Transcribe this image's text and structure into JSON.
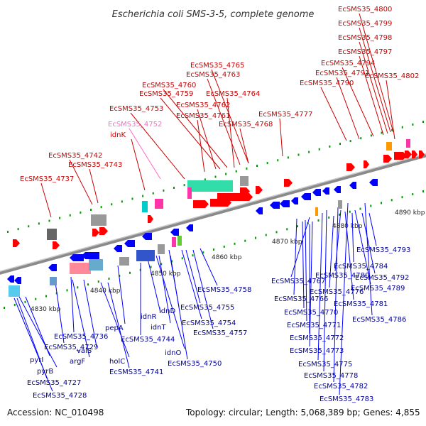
{
  "title": "Escherichia coli SMS-3-5, complete genome",
  "footer": {
    "accession": "Accession: NC_010498",
    "topology": "Topology: circular; Length: 5,068,389 bp; Genes: 4,855"
  },
  "colors": {
    "forward": "#ff0000",
    "reverse": "#0000ff",
    "grey": "#999999",
    "cyan": "#00cccc",
    "teal": "#33ddaa",
    "pink": "#ff33aa",
    "orange": "#ff9900",
    "green": "#009900",
    "label_forward": "#cc0000",
    "label_reverse": "#000099",
    "label_pink": "#ff66cc"
  },
  "kbp_ticks": [
    "4830 kbp",
    "4840 kbp",
    "4850 kbp",
    "4860 kbp",
    "4870 kbp",
    "4880 kbp",
    "4890 kbp"
  ],
  "top_labels": [
    {
      "text": "EcSMS35_4800",
      "tone": "red"
    },
    {
      "text": "EcSMS35_4799",
      "tone": "red"
    },
    {
      "text": "EcSMS35_4798",
      "tone": "red"
    },
    {
      "text": "EcSMS35_4797",
      "tone": "red"
    },
    {
      "text": "EcSMS35_4794",
      "tone": "red"
    },
    {
      "text": "EcSMS35_4791",
      "tone": "red"
    },
    {
      "text": "EcSMS35_4802",
      "tone": "red"
    },
    {
      "text": "EcSMS35_4790",
      "tone": "red"
    },
    {
      "text": "EcSMS35_4765",
      "tone": "red"
    },
    {
      "text": "EcSMS35_4763",
      "tone": "red"
    },
    {
      "text": "EcSMS35_4760",
      "tone": "red"
    },
    {
      "text": "EcSMS35_4759",
      "tone": "red"
    },
    {
      "text": "EcSMS35_4764",
      "tone": "red"
    },
    {
      "text": "EcSMS35_4762",
      "tone": "red"
    },
    {
      "text": "EcSMS35_4753",
      "tone": "red"
    },
    {
      "text": "EcSMS35_4761",
      "tone": "red"
    },
    {
      "text": "EcSMS35_4777",
      "tone": "red"
    },
    {
      "text": "EcSMS35_4768",
      "tone": "red"
    },
    {
      "text": "EcSMS35_4752",
      "tone": "pink"
    },
    {
      "text": "idnK",
      "tone": "red"
    },
    {
      "text": "EcSMS35_4742",
      "tone": "red"
    },
    {
      "text": "EcSMS35_4743",
      "tone": "red"
    },
    {
      "text": "EcSMS35_4737",
      "tone": "red"
    }
  ],
  "bottom_labels": [
    {
      "text": "EcSMS35_4793"
    },
    {
      "text": "EcSMS35_4784"
    },
    {
      "text": "EcSMS35_4792"
    },
    {
      "text": "EcSMS35_4767"
    },
    {
      "text": "EcSMS35_4780"
    },
    {
      "text": "EcSMS35_4789"
    },
    {
      "text": "EcSMS35_4758"
    },
    {
      "text": "EcSMS35_4766"
    },
    {
      "text": "EcSMS35_4776"
    },
    {
      "text": "EcSMS35_4781"
    },
    {
      "text": "EcSMS35_4755"
    },
    {
      "text": "idnD"
    },
    {
      "text": "EcSMS35_4770"
    },
    {
      "text": "EcSMS35_4786"
    },
    {
      "text": "idnR"
    },
    {
      "text": "EcSMS35_4754"
    },
    {
      "text": "idnT"
    },
    {
      "text": "EcSMS35_4771"
    },
    {
      "text": "pepA"
    },
    {
      "text": "EcSMS35_4757"
    },
    {
      "text": "EcSMS35_4736"
    },
    {
      "text": "EcSMS35_4744"
    },
    {
      "text": "EcSMS35_4772"
    },
    {
      "text": "EcSMS35_4729"
    },
    {
      "text": "idnO"
    },
    {
      "text": "valS"
    },
    {
      "text": "EcSMS35_4773"
    },
    {
      "text": "argF"
    },
    {
      "text": "pyrI"
    },
    {
      "text": "holC"
    },
    {
      "text": "EcSMS35_4750"
    },
    {
      "text": "EcSMS35_4775"
    },
    {
      "text": "pyrB"
    },
    {
      "text": "EcSMS35_4741"
    },
    {
      "text": "EcSMS35_4778"
    },
    {
      "text": "EcSMS35_4727"
    },
    {
      "text": "EcSMS35_4782"
    },
    {
      "text": "EcSMS35_4728"
    },
    {
      "text": "EcSMS35_4783"
    }
  ]
}
